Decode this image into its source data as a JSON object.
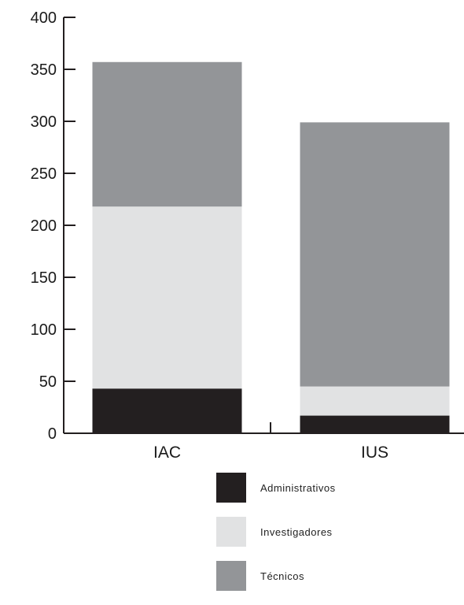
{
  "chart_data": {
    "type": "bar",
    "stacked": true,
    "categories": [
      "IAC",
      "IUS"
    ],
    "series": [
      {
        "name": "Administrativos",
        "values": [
          43,
          17
        ],
        "color": "#231f20"
      },
      {
        "name": "Investigadores",
        "values": [
          175,
          28
        ],
        "color": "#e1e2e3"
      },
      {
        "name": "Técnicos",
        "values": [
          139,
          254
        ],
        "color": "#939598"
      }
    ],
    "yticks": [
      0,
      50,
      100,
      150,
      200,
      250,
      300,
      350,
      400
    ],
    "ylim": [
      0,
      400
    ],
    "title": "",
    "xlabel": "",
    "ylabel": "",
    "grid": false,
    "legend": "bottom"
  }
}
